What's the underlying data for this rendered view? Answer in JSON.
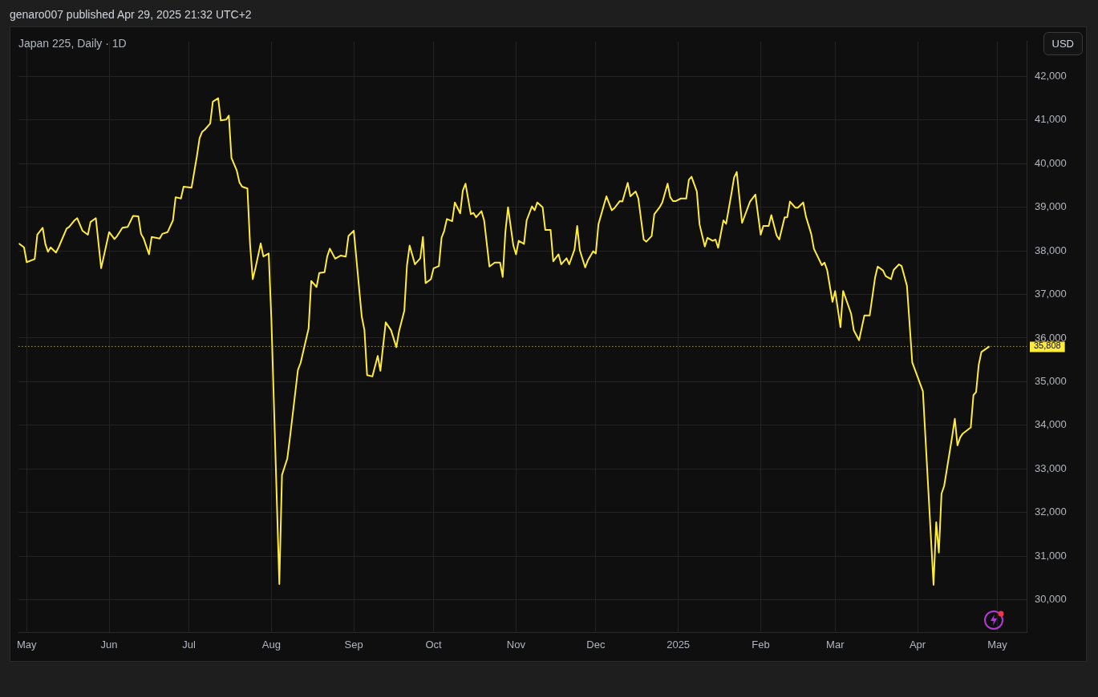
{
  "chart_data": {
    "type": "line",
    "title": "Japan 225, Daily · 1D",
    "subtitle": "genaro007 published Apr 29, 2025 21:32 UTC+2",
    "annotations": [
      "USD"
    ],
    "x": [
      "2024-04-28",
      "2024-04-30",
      "2024-05-01",
      "2024-05-04",
      "2024-05-05",
      "2024-05-07",
      "2024-05-08",
      "2024-05-09",
      "2024-05-10",
      "2024-05-12",
      "2024-05-13",
      "2024-05-16",
      "2024-05-17",
      "2024-05-19",
      "2024-05-20",
      "2024-05-22",
      "2024-05-24",
      "2024-05-25",
      "2024-05-27",
      "2024-05-29",
      "2024-06-01",
      "2024-06-03",
      "2024-06-04",
      "2024-06-06",
      "2024-06-08",
      "2024-06-10",
      "2024-06-12",
      "2024-06-13",
      "2024-06-14",
      "2024-06-16",
      "2024-06-17",
      "2024-06-20",
      "2024-06-21",
      "2024-06-23",
      "2024-06-25",
      "2024-06-26",
      "2024-06-28",
      "2024-06-29",
      "2024-07-02",
      "2024-07-04",
      "2024-07-05",
      "2024-07-06",
      "2024-07-07",
      "2024-07-09",
      "2024-07-10",
      "2024-07-12",
      "2024-07-13",
      "2024-07-15",
      "2024-07-16",
      "2024-07-17",
      "2024-07-19",
      "2024-07-20",
      "2024-07-21",
      "2024-07-23",
      "2024-07-24",
      "2024-07-25",
      "2024-07-26",
      "2024-07-28",
      "2024-07-29",
      "2024-07-31",
      "2024-08-01",
      "2024-08-04",
      "2024-08-05",
      "2024-08-07",
      "2024-08-08",
      "2024-08-11",
      "2024-08-12",
      "2024-08-15",
      "2024-08-16",
      "2024-08-18",
      "2024-08-19",
      "2024-08-21",
      "2024-08-22",
      "2024-08-23",
      "2024-08-25",
      "2024-08-27",
      "2024-08-29",
      "2024-08-30",
      "2024-09-01",
      "2024-09-04",
      "2024-09-05",
      "2024-09-06",
      "2024-09-08",
      "2024-09-10",
      "2024-09-11",
      "2024-09-13",
      "2024-09-15",
      "2024-09-17",
      "2024-09-18",
      "2024-09-20",
      "2024-09-21",
      "2024-09-22",
      "2024-09-24",
      "2024-09-26",
      "2024-09-27",
      "2024-09-28",
      "2024-09-30",
      "2024-10-01",
      "2024-10-03",
      "2024-10-04",
      "2024-10-05",
      "2024-10-06",
      "2024-10-08",
      "2024-10-09",
      "2024-10-11",
      "2024-10-12",
      "2024-10-13",
      "2024-10-15",
      "2024-10-16",
      "2024-10-17",
      "2024-10-19",
      "2024-10-20",
      "2024-10-22",
      "2024-10-24",
      "2024-10-26",
      "2024-10-27",
      "2024-10-28",
      "2024-10-29",
      "2024-10-31",
      "2024-11-01",
      "2024-11-02",
      "2024-11-04",
      "2024-11-05",
      "2024-11-07",
      "2024-11-08",
      "2024-11-09",
      "2024-11-11",
      "2024-11-12",
      "2024-11-14",
      "2024-11-15",
      "2024-11-17",
      "2024-11-18",
      "2024-11-20",
      "2024-11-21",
      "2024-11-23",
      "2024-11-24",
      "2024-11-25",
      "2024-11-27",
      "2024-11-28",
      "2024-11-30",
      "2024-12-01",
      "2024-12-02",
      "2024-12-04",
      "2024-12-05",
      "2024-12-07",
      "2024-12-08",
      "2024-12-10",
      "2024-12-11",
      "2024-12-13",
      "2024-12-14",
      "2024-12-16",
      "2024-12-17",
      "2024-12-19",
      "2024-12-20",
      "2024-12-22",
      "2024-12-23",
      "2024-12-25",
      "2024-12-26",
      "2024-12-28",
      "2024-12-29",
      "2024-12-30",
      "2024-12-31",
      "2025-01-02",
      "2025-01-04",
      "2025-01-05",
      "2025-01-06",
      "2025-01-08",
      "2025-01-09",
      "2025-01-11",
      "2025-01-12",
      "2025-01-14",
      "2025-01-15",
      "2025-01-16",
      "2025-01-18",
      "2025-01-19",
      "2025-01-21",
      "2025-01-22",
      "2025-01-23",
      "2025-01-25",
      "2025-01-28",
      "2025-01-30",
      "2025-02-01",
      "2025-02-02",
      "2025-02-04",
      "2025-02-05",
      "2025-02-07",
      "2025-02-08",
      "2025-02-10",
      "2025-02-11",
      "2025-02-12",
      "2025-02-14",
      "2025-02-15",
      "2025-02-17",
      "2025-02-18",
      "2025-02-20",
      "2025-02-21",
      "2025-02-24",
      "2025-02-25",
      "2025-02-26",
      "2025-02-28",
      "2025-03-01",
      "2025-03-03",
      "2025-03-04",
      "2025-03-07",
      "2025-03-08",
      "2025-03-10",
      "2025-03-12",
      "2025-03-14",
      "2025-03-16",
      "2025-03-17",
      "2025-03-19",
      "2025-03-20",
      "2025-03-22",
      "2025-03-23",
      "2025-03-25",
      "2025-03-26",
      "2025-03-28",
      "2025-03-30",
      "2025-04-03",
      "2025-04-07",
      "2025-04-08",
      "2025-04-09",
      "2025-04-10",
      "2025-04-11",
      "2025-04-14",
      "2025-04-15",
      "2025-04-16",
      "2025-04-17",
      "2025-04-18",
      "2025-04-21",
      "2025-04-22",
      "2025-04-23",
      "2025-04-24",
      "2025-04-25",
      "2025-04-28"
    ],
    "series": [
      {
        "color": "#ffeb3b",
        "values": [
          38170,
          38080,
          37740,
          37810,
          38370,
          38530,
          38160,
          37980,
          38080,
          37960,
          38080,
          38510,
          38550,
          38700,
          38750,
          38460,
          38370,
          38660,
          38750,
          37600,
          38430,
          38270,
          38340,
          38530,
          38550,
          38800,
          38790,
          38390,
          38280,
          37920,
          38320,
          38280,
          38390,
          38430,
          38700,
          39230,
          39200,
          39470,
          39450,
          40170,
          40580,
          40730,
          40780,
          40920,
          41420,
          41500,
          40990,
          41010,
          41100,
          40130,
          39840,
          39570,
          39470,
          39430,
          38140,
          37350,
          37600,
          38170,
          37870,
          37940,
          36450,
          30360,
          32860,
          33240,
          33720,
          35270,
          35430,
          36220,
          37310,
          37170,
          37490,
          37510,
          37870,
          38050,
          37820,
          37890,
          37870,
          38340,
          38460,
          36490,
          36180,
          35150,
          35120,
          35590,
          35250,
          36360,
          36180,
          35790,
          36150,
          36630,
          37670,
          38120,
          37690,
          37830,
          38320,
          37260,
          37350,
          37600,
          37650,
          38300,
          38460,
          38730,
          38680,
          39110,
          38860,
          39380,
          39540,
          38840,
          38870,
          38770,
          38910,
          38700,
          37640,
          37730,
          37730,
          37400,
          38430,
          39000,
          38120,
          37920,
          38230,
          38160,
          38700,
          39020,
          38930,
          39110,
          39000,
          38480,
          38480,
          37760,
          37920,
          37690,
          37830,
          37690,
          38030,
          38570,
          38010,
          37620,
          37780,
          37990,
          37940,
          38610,
          39040,
          39250,
          38930,
          38980,
          39140,
          39130,
          39560,
          39250,
          39360,
          39200,
          38260,
          38210,
          38340,
          38840,
          39000,
          39110,
          39540,
          39230,
          39140,
          39140,
          39200,
          39200,
          39630,
          39700,
          39360,
          38610,
          38100,
          38300,
          38230,
          38260,
          38070,
          38700,
          38620,
          39310,
          39680,
          39810,
          38640,
          39130,
          39290,
          38370,
          38570,
          38570,
          38820,
          38350,
          38260,
          38770,
          38770,
          39130,
          38990,
          38990,
          39110,
          38790,
          38390,
          38050,
          37670,
          37730,
          37560,
          36830,
          37080,
          36250,
          37080,
          36560,
          36180,
          35950,
          36520,
          36520,
          37380,
          37640,
          37550,
          37420,
          37350,
          37560,
          37690,
          37650,
          37200,
          35440,
          34780,
          30340,
          31780,
          31080,
          32430,
          32610,
          33740,
          34150,
          33540,
          33720,
          33810,
          33950,
          34690,
          34760,
          35390,
          35680,
          35808
        ]
      }
    ],
    "xlim": [
      "2024-04-28",
      "2025-05-12"
    ],
    "xticks": [
      {
        "value": "2024-05-01",
        "label": "May"
      },
      {
        "value": "2024-06-01",
        "label": "Jun"
      },
      {
        "value": "2024-07-01",
        "label": "Jul"
      },
      {
        "value": "2024-08-01",
        "label": "Aug"
      },
      {
        "value": "2024-09-01",
        "label": "Sep"
      },
      {
        "value": "2024-10-01",
        "label": "Oct"
      },
      {
        "value": "2024-11-01",
        "label": "Nov"
      },
      {
        "value": "2024-12-01",
        "label": "Dec"
      },
      {
        "value": "2025-01-01",
        "label": "2025"
      },
      {
        "value": "2025-02-01",
        "label": "Feb"
      },
      {
        "value": "2025-03-01",
        "label": "Mar"
      },
      {
        "value": "2025-04-01",
        "label": "Apr"
      },
      {
        "value": "2025-05-01",
        "label": "May"
      }
    ],
    "ylim": [
      29250,
      42800
    ],
    "yticks": [
      {
        "value": 30000,
        "label": "30,000"
      },
      {
        "value": 31000,
        "label": "31,000"
      },
      {
        "value": 32000,
        "label": "32,000"
      },
      {
        "value": 33000,
        "label": "33,000"
      },
      {
        "value": 34000,
        "label": "34,000"
      },
      {
        "value": 35000,
        "label": "35,000"
      },
      {
        "value": 36000,
        "label": "36,000"
      },
      {
        "value": 37000,
        "label": "37,000"
      },
      {
        "value": 38000,
        "label": "38,000"
      },
      {
        "value": 39000,
        "label": "39,000"
      },
      {
        "value": 40000,
        "label": "40,000"
      },
      {
        "value": 41000,
        "label": "41,000"
      },
      {
        "value": 42000,
        "label": "42,000"
      }
    ],
    "ref_lines": [
      {
        "axis": "y",
        "value": 35808,
        "label": "35,808",
        "color": "#ffeb3b",
        "line_style": "dotted"
      }
    ],
    "grid": true,
    "marker": "none",
    "line_style": "solid"
  }
}
